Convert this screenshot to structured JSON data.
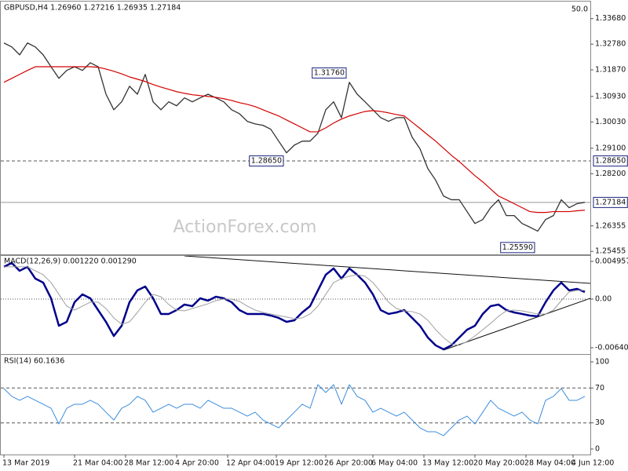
{
  "chart_data": [
    {
      "type": "line",
      "title": "GBPUSD,H4 1.26960 1.27216 1.26935 1.27184",
      "scale_label": "50.0",
      "watermark": "ActionForex.com",
      "ylim": [
        1.2535,
        1.342
      ],
      "yticks": [
        {
          "value": 1.3368,
          "label": "1.33680"
        },
        {
          "value": 1.3278,
          "label": "1.32780"
        },
        {
          "value": 1.3187,
          "label": "1.31870"
        },
        {
          "value": 1.3093,
          "label": "1.30930"
        },
        {
          "value": 1.3003,
          "label": "1.30030"
        },
        {
          "value": 1.291,
          "label": "1.29100"
        },
        {
          "value": 1.282,
          "label": "1.28200"
        },
        1.26355,
        1.25455
      ],
      "hlines": [
        {
          "value": 1.2865,
          "label": "1.28650",
          "style": "dashed"
        },
        {
          "value": 1.27184,
          "label": "1.27184",
          "style": "solid"
        }
      ],
      "annotations": [
        {
          "x": 44,
          "value": 1.3176,
          "label": "1.31760"
        },
        {
          "x": 36,
          "value": 1.2865,
          "label": "1.28650"
        },
        {
          "x": 68,
          "value": 1.2559,
          "label": "1.25590"
        }
      ],
      "series": [
        {
          "color": "#333333",
          "width": 1.3,
          "values": [
            1.3282,
            1.3268,
            1.324,
            1.3282,
            1.3268,
            1.324,
            1.3198,
            1.3157,
            1.3185,
            1.3198,
            1.3185,
            1.3212,
            1.3198,
            1.3101,
            1.3046,
            1.3074,
            1.3129,
            1.3101,
            1.3171,
            1.3074,
            1.3046,
            1.3074,
            1.306,
            1.3088,
            1.3074,
            1.3088,
            1.3101,
            1.3088,
            1.3074,
            1.3046,
            1.3032,
            1.3005,
            1.2996,
            1.2991,
            1.2977,
            1.2935,
            1.2894,
            1.2921,
            1.2935,
            1.2935,
            1.2963,
            1.3046,
            1.3074,
            1.3018,
            1.3143,
            1.3101,
            1.3074,
            1.3046,
            1.3018,
            1.3005,
            1.3018,
            1.3018,
            1.2949,
            1.2908,
            1.2838,
            1.2797,
            1.2741,
            1.2728,
            1.2728,
            1.2686,
            1.2644,
            1.2658,
            1.27,
            1.2728,
            1.2672,
            1.2672,
            1.2644,
            1.2631,
            1.2617,
            1.2658,
            1.2672,
            1.2728,
            1.27,
            1.2714,
            1.2719
          ]
        },
        {
          "color": "#d40000",
          "width": 1.2,
          "values": [
            1.3143,
            1.3157,
            1.3171,
            1.3185,
            1.3198,
            1.3198,
            1.3198,
            1.3198,
            1.3198,
            1.3198,
            1.3198,
            1.3198,
            1.3196,
            1.319,
            1.3182,
            1.3173,
            1.3162,
            1.3154,
            1.3146,
            1.3135,
            1.3126,
            1.3118,
            1.311,
            1.3104,
            1.3099,
            1.3096,
            1.3093,
            1.309,
            1.3085,
            1.3079,
            1.3071,
            1.3065,
            1.3057,
            1.3046,
            1.3035,
            1.3024,
            1.301,
            1.2996,
            1.2982,
            1.2968,
            1.2968,
            1.2982,
            1.2999,
            1.3013,
            1.3024,
            1.3032,
            1.304,
            1.3043,
            1.304,
            1.3035,
            1.3029,
            1.3024,
            1.3002,
            1.298,
            1.2957,
            1.2935,
            1.291,
            1.2885,
            1.2863,
            1.2838,
            1.2813,
            1.2791,
            1.2766,
            1.2741,
            1.2728,
            1.2714,
            1.27,
            1.2686,
            1.2683,
            1.2683,
            1.2686,
            1.2686,
            1.2686,
            1.2689,
            1.2691
          ]
        }
      ]
    },
    {
      "type": "line",
      "title": "MACD(12,26,9) 0.001220 0.001290",
      "ylim": [
        -0.00713,
        0.00547
      ],
      "yticks": [
        0.004957,
        {
          "value": 0,
          "label": "0.00"
        },
        -0.006404
      ],
      "hlines": [
        {
          "value": 0,
          "style": "dotted"
        }
      ],
      "series": [
        {
          "color": "#00008b",
          "width": 2.5,
          "values": [
            0.00424,
            0.00475,
            0.00372,
            0.00424,
            0.00269,
            0.00217,
            0.0001,
            -0.00351,
            -0.003,
            -0.00041,
            0.00062,
            0.0001,
            -0.00145,
            -0.003,
            -0.00486,
            -0.00351,
            -0.00041,
            0.00114,
            0.00165,
            0.0001,
            -0.00196,
            -0.00196,
            -0.00145,
            -0.00072,
            -0.00093,
            0.0001,
            -0.00021,
            0.00031,
            0.0001,
            -0.00041,
            -0.00145,
            -0.00196,
            -0.00196,
            -0.00196,
            -0.00217,
            -0.00248,
            -0.003,
            -0.00279,
            -0.00176,
            -0.00093,
            0.00114,
            0.0032,
            0.00403,
            0.00269,
            0.00403,
            0.0032,
            0.00217,
            0.00062,
            -0.00145,
            -0.00196,
            -0.00176,
            -0.00145,
            -0.00248,
            -0.00351,
            -0.00506,
            -0.00609,
            -0.00661,
            -0.00609,
            -0.00506,
            -0.00403,
            -0.00351,
            -0.00196,
            -0.00093,
            -0.00072,
            -0.00145,
            -0.00176,
            -0.00196,
            -0.00217,
            -0.00227,
            -0.00041,
            0.00114,
            0.00217,
            0.00114,
            0.00134,
            0.00093
          ]
        },
        {
          "color": "#a0a0a0",
          "width": 1,
          "values": [
            0.00424,
            0.00424,
            0.00424,
            0.00424,
            0.00372,
            0.0032,
            0.00217,
            0.00062,
            -0.00093,
            -0.00145,
            -0.00093,
            -0.00041,
            -0.00041,
            -0.00124,
            -0.00248,
            -0.00331,
            -0.003,
            -0.00176,
            -0.00041,
            0.00062,
            0.00031,
            -0.00072,
            -0.00145,
            -0.00155,
            -0.00124,
            -0.00093,
            -0.00062,
            -0.00021,
            0,
            0,
            -0.00031,
            -0.00093,
            -0.00145,
            -0.00176,
            -0.00196,
            -0.00217,
            -0.00237,
            -0.00258,
            -0.00248,
            -0.00196,
            -0.00093,
            0.00062,
            0.00217,
            0.00269,
            0.003,
            0.0032,
            0.003,
            0.00217,
            0.00093,
            -0.00041,
            -0.00124,
            -0.00155,
            -0.00165,
            -0.00196,
            -0.00279,
            -0.00403,
            -0.00506,
            -0.00589,
            -0.00609,
            -0.00558,
            -0.00486,
            -0.00403,
            -0.0032,
            -0.00227,
            -0.00155,
            -0.00145,
            -0.00155,
            -0.00176,
            -0.00196,
            -0.00196,
            -0.00145,
            -0.00021,
            0.00093,
            0.00114,
            0.00114
          ]
        }
      ]
    },
    {
      "type": "line",
      "title": "RSI(14) 60.1636",
      "ylim": [
        -5.4,
        105.4
      ],
      "yticks": [
        100,
        70,
        30,
        0
      ],
      "hlines": [
        {
          "value": 70,
          "style": "dashed"
        },
        {
          "value": 30,
          "style": "dashed"
        }
      ],
      "series": [
        {
          "color": "#3c8ddb",
          "width": 1,
          "values": [
            69.4,
            60.4,
            55.9,
            60.4,
            55.9,
            51.4,
            46.8,
            28.8,
            46.8,
            51.4,
            51.4,
            55.9,
            51.4,
            42.3,
            33.3,
            46.8,
            51.4,
            60.4,
            55.9,
            42.3,
            46.8,
            51.4,
            46.8,
            51.4,
            51.4,
            46.8,
            55.9,
            51.4,
            46.8,
            46.8,
            42.3,
            37.8,
            42.3,
            33.3,
            28.8,
            24.3,
            33.3,
            42.3,
            51.4,
            46.8,
            73.9,
            64.9,
            73.9,
            51.4,
            73.9,
            60.4,
            55.9,
            42.3,
            46.8,
            42.3,
            37.8,
            42.3,
            33.3,
            24.3,
            19.8,
            19.8,
            15.3,
            24.3,
            33.3,
            37.8,
            28.8,
            42.3,
            55.9,
            46.8,
            42.3,
            37.8,
            42.3,
            33.3,
            28.8,
            55.9,
            60.4,
            69.4,
            55.9,
            55.9,
            60.4
          ]
        }
      ],
      "xticks": [
        {
          "value": 0,
          "label": "13 Mar 2019"
        },
        {
          "value": 9,
          "label": "21 Mar 04:00"
        },
        {
          "value": 15.5,
          "label": "28 Mar 12:00"
        },
        {
          "value": 22,
          "label": "4 Apr 20:00"
        },
        {
          "value": 28.5,
          "label": "12 Apr 04:00"
        },
        {
          "value": 34.7,
          "label": "19 Apr 12:00"
        },
        {
          "value": 41,
          "label": "26 Apr 20:00"
        },
        {
          "value": 47,
          "label": "6 May 04:00"
        },
        {
          "value": 53.5,
          "label": "13 May 12:00"
        },
        {
          "value": 60,
          "label": "20 May 20:00"
        },
        {
          "value": 66.5,
          "label": "28 May 04:00"
        },
        {
          "value": 72.5,
          "label": "4 Jun 12:00"
        }
      ]
    }
  ]
}
